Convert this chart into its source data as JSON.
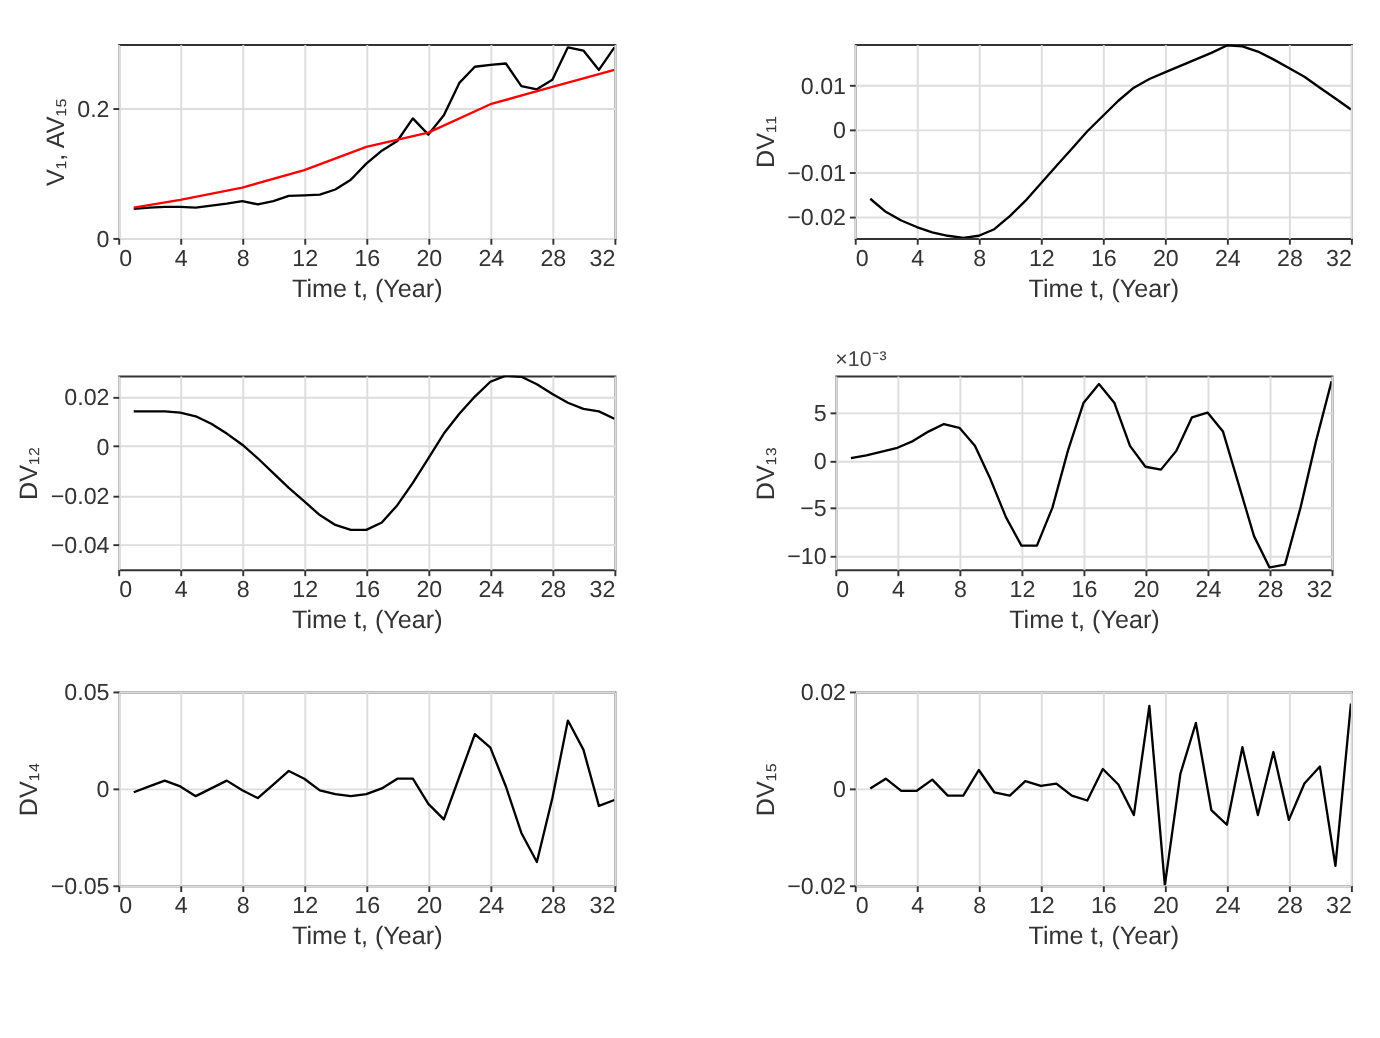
{
  "chart_data": [
    {
      "type": "line",
      "xlabel": "Time t, (Year)",
      "ylabel": "V₁, AV₁₅",
      "xlim": [
        0,
        32
      ],
      "xticks": [
        0,
        4,
        8,
        12,
        16,
        20,
        24,
        28,
        32
      ],
      "ylim": [
        0,
        0.3
      ],
      "yticks": [
        0,
        0.2
      ],
      "grid": true,
      "series": [
        {
          "color": "#000000",
          "x": [
            1,
            2,
            3,
            4,
            5,
            6,
            7,
            8,
            9,
            10,
            11,
            12,
            13,
            14,
            15,
            16,
            17,
            18,
            19,
            20,
            21,
            22,
            23,
            24,
            25,
            26,
            27,
            28,
            29,
            30,
            31,
            32
          ],
          "values": [
            0.045,
            0.047,
            0.048,
            0.048,
            0.047,
            0.05,
            0.053,
            0.057,
            0.052,
            0.057,
            0.065,
            0.066,
            0.067,
            0.075,
            0.09,
            0.115,
            0.135,
            0.15,
            0.185,
            0.16,
            0.19,
            0.24,
            0.265,
            0.268,
            0.27,
            0.235,
            0.23,
            0.245,
            0.295,
            0.29,
            0.26,
            0.295
          ]
        },
        {
          "color": "#ff0000",
          "x": [
            1,
            4,
            8,
            12,
            16,
            20,
            24,
            28,
            32
          ],
          "values": [
            0.047,
            0.059,
            0.078,
            0.105,
            0.141,
            0.163,
            0.207,
            0.234,
            0.26
          ]
        }
      ]
    },
    {
      "type": "line",
      "xlabel": "Time t, (Year)",
      "ylabel": "DV₁₁",
      "xlim": [
        0,
        32
      ],
      "xticks": [
        0,
        4,
        8,
        12,
        16,
        20,
        24,
        28,
        32
      ],
      "ylim": [
        -0.025,
        0.0195
      ],
      "yticks": [
        -0.02,
        -0.01,
        0,
        0.01
      ],
      "grid": true,
      "series": [
        {
          "color": "#000000",
          "x": [
            1,
            2,
            3,
            4,
            5,
            6,
            7,
            8,
            9,
            10,
            11,
            12,
            13,
            14,
            15,
            16,
            17,
            18,
            19,
            20,
            21,
            22,
            23,
            24,
            25,
            26,
            27,
            28,
            29,
            30,
            31,
            32
          ],
          "values": [
            -0.016,
            -0.019,
            -0.021,
            -0.0225,
            -0.0237,
            -0.0245,
            -0.025,
            -0.0245,
            -0.023,
            -0.02,
            -0.0165,
            -0.0125,
            -0.0085,
            -0.0045,
            -0.0005,
            0.003,
            0.0065,
            0.0095,
            0.0115,
            0.013,
            0.0145,
            0.016,
            0.0175,
            0.0192,
            0.019,
            0.0178,
            0.016,
            0.014,
            0.012,
            0.0095,
            0.007,
            0.0045
          ]
        }
      ]
    },
    {
      "type": "line",
      "xlabel": "Time t, (Year)",
      "ylabel": "DV₁₂",
      "xlim": [
        0,
        32
      ],
      "xticks": [
        0,
        4,
        8,
        12,
        16,
        20,
        24,
        28,
        32
      ],
      "ylim": [
        -0.05,
        0.0285
      ],
      "yticks": [
        -0.04,
        -0.02,
        0,
        0.02
      ],
      "grid": true,
      "series": [
        {
          "color": "#000000",
          "x": [
            1,
            2,
            3,
            4,
            5,
            6,
            7,
            8,
            9,
            10,
            11,
            12,
            13,
            14,
            15,
            16,
            17,
            18,
            19,
            20,
            21,
            22,
            23,
            24,
            25,
            26,
            27,
            28,
            29,
            30,
            31,
            32
          ],
          "values": [
            0.014,
            0.014,
            0.014,
            0.0135,
            0.012,
            0.009,
            0.005,
            0.0005,
            -0.005,
            -0.011,
            -0.017,
            -0.0225,
            -0.028,
            -0.032,
            -0.034,
            -0.034,
            -0.031,
            -0.024,
            -0.015,
            -0.005,
            0.005,
            0.013,
            0.02,
            0.026,
            0.0285,
            0.028,
            0.025,
            0.021,
            0.0175,
            0.015,
            0.014,
            0.011
          ]
        }
      ]
    },
    {
      "type": "line",
      "xlabel": "Time t, (Year)",
      "ylabel": "DV₁₃",
      "annotations": [
        "×10⁻³"
      ],
      "xlim": [
        0,
        32
      ],
      "xticks": [
        0,
        4,
        8,
        12,
        16,
        20,
        24,
        28,
        32
      ],
      "ylim": [
        -11.5,
        8.9
      ],
      "yticks": [
        -10,
        -5,
        0,
        5
      ],
      "grid": true,
      "series": [
        {
          "color": "#000000",
          "x": [
            1,
            2,
            3,
            4,
            5,
            6,
            7,
            8,
            9,
            10,
            11,
            12,
            13,
            14,
            15,
            16,
            17,
            18,
            19,
            20,
            21,
            22,
            23,
            24,
            25,
            26,
            27,
            28,
            29,
            30,
            31,
            32
          ],
          "values": [
            0.2,
            0.5,
            0.9,
            1.3,
            2,
            3,
            3.8,
            3.4,
            1.5,
            -2,
            -6,
            -9,
            -9,
            -5,
            1,
            6,
            8,
            6,
            1.5,
            -0.7,
            -1,
            1,
            4.5,
            5,
            3,
            -2.5,
            -8,
            -11.3,
            -11,
            -5,
            2,
            8.3
          ]
        }
      ]
    },
    {
      "type": "line",
      "xlabel": "Time t, (Year)",
      "ylabel": "DV₁₄",
      "xlim": [
        0,
        32
      ],
      "xticks": [
        0,
        4,
        8,
        12,
        16,
        20,
        24,
        28,
        32
      ],
      "ylim": [
        -0.05,
        0.05
      ],
      "yticks": [
        -0.05,
        0,
        0.05
      ],
      "grid": true,
      "series": [
        {
          "color": "#000000",
          "x": [
            1,
            2,
            3,
            4,
            5,
            6,
            7,
            8,
            9,
            10,
            11,
            12,
            13,
            14,
            15,
            16,
            17,
            18,
            19,
            20,
            21,
            22,
            23,
            24,
            25,
            26,
            27,
            28,
            29,
            30,
            31,
            32
          ],
          "values": [
            -0.002,
            0.001,
            0.004,
            0.001,
            -0.004,
            0,
            0.004,
            -0.001,
            -0.005,
            0.002,
            0.009,
            0.005,
            -0.001,
            -0.003,
            -0.004,
            -0.003,
            0,
            0.005,
            0.005,
            -0.008,
            -0.016,
            0.006,
            0.028,
            0.021,
            0.001,
            -0.023,
            -0.038,
            -0.005,
            0.035,
            0.02,
            -0.009,
            -0.006
          ]
        }
      ]
    },
    {
      "type": "line",
      "xlabel": "Time t, (Year)",
      "ylabel": "DV₁₅",
      "xlim": [
        0,
        32
      ],
      "xticks": [
        0,
        4,
        8,
        12,
        16,
        20,
        24,
        28,
        32
      ],
      "ylim": [
        -0.02,
        0.02
      ],
      "yticks": [
        -0.02,
        0,
        0.02
      ],
      "grid": true,
      "series": [
        {
          "color": "#000000",
          "x": [
            1,
            2,
            3,
            4,
            5,
            6,
            7,
            8,
            9,
            10,
            11,
            12,
            13,
            14,
            15,
            16,
            17,
            18,
            19,
            20,
            21,
            22,
            23,
            24,
            25,
            26,
            27,
            28,
            29,
            30,
            31,
            32
          ],
          "values": [
            0,
            0.002,
            -0.0005,
            -0.0005,
            0.0018,
            -0.0015,
            -0.0015,
            0.0038,
            -0.0008,
            -0.0015,
            0.0015,
            0.0005,
            0.001,
            -0.0015,
            -0.0025,
            0.004,
            0.0008,
            -0.0055,
            0.017,
            -0.02,
            0.003,
            0.0135,
            -0.0045,
            -0.0075,
            0.0085,
            -0.0055,
            0.0075,
            -0.0065,
            0.001,
            0.0045,
            -0.016,
            0.0175
          ]
        }
      ]
    }
  ]
}
